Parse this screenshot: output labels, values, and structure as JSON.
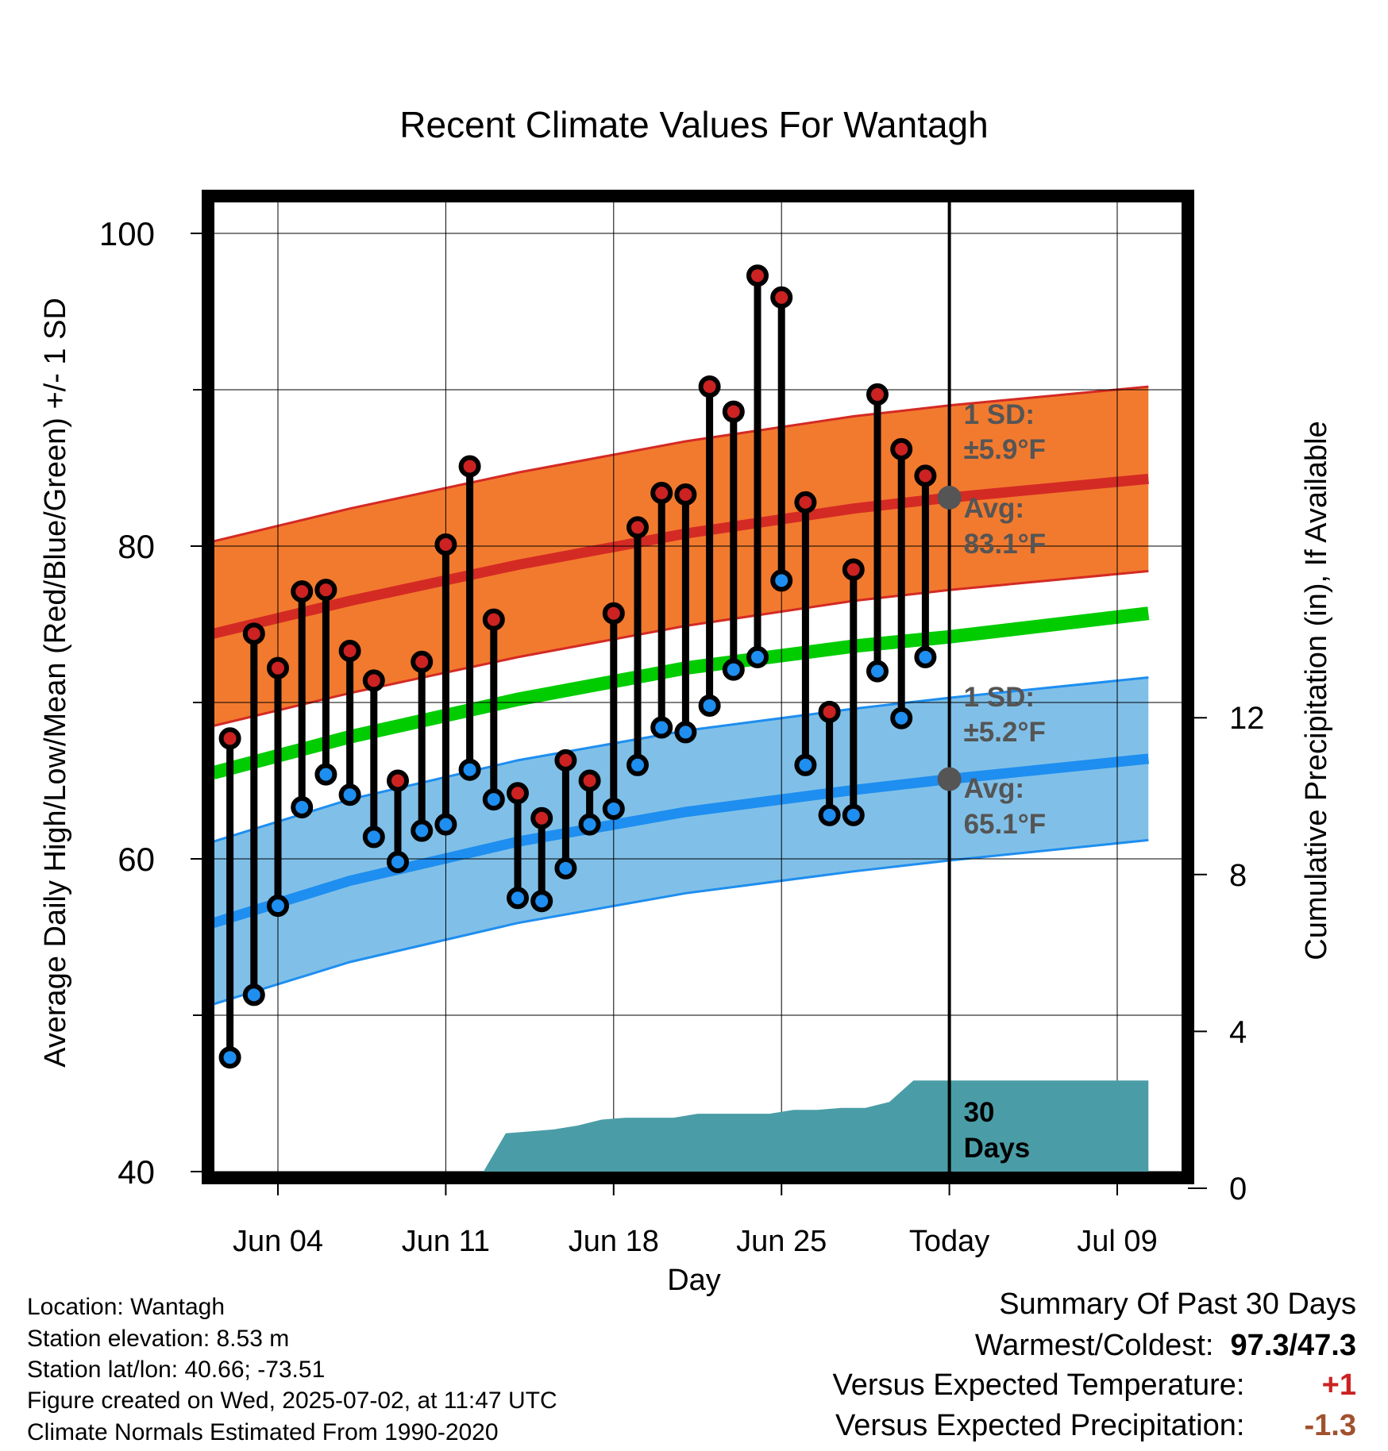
{
  "chart_data": {
    "type": "climate_range",
    "title": "Recent Climate Values For Wantagh",
    "xlabel": "Day",
    "ylabel": "Average Daily High/Low/Mean (Red/Blue/Green) +/- 1 SD",
    "y2label": "Cumulative Precipitation (in), If Available",
    "ylim": [
      39.5,
      102.5
    ],
    "y_ticks": [
      40,
      60,
      80,
      100
    ],
    "y2_ticks": [
      0,
      4,
      8,
      12
    ],
    "x_tick_labels": [
      "Jun 04",
      "Jun 11",
      "Jun 18",
      "Jun 25",
      "Today",
      "Jul 09"
    ],
    "x_tick_days": [
      4,
      11,
      18,
      25,
      32,
      39
    ],
    "today_day": 32,
    "observed": {
      "days": [
        2,
        3,
        4,
        5,
        6,
        7,
        8,
        9,
        10,
        11,
        12,
        13,
        14,
        15,
        16,
        17,
        18,
        19,
        20,
        21,
        22,
        23,
        24,
        25,
        26,
        27,
        28,
        29,
        30,
        31
      ],
      "high": [
        67.7,
        74.4,
        72.2,
        77.1,
        77.2,
        73.3,
        71.4,
        65.0,
        72.6,
        80.1,
        85.1,
        75.3,
        64.2,
        62.6,
        66.3,
        65.0,
        75.7,
        81.2,
        83.4,
        83.3,
        90.2,
        88.6,
        97.3,
        95.9,
        82.8,
        69.4,
        78.5,
        89.7,
        86.2,
        84.5
      ],
      "low": [
        47.3,
        51.3,
        57.0,
        63.3,
        65.4,
        64.1,
        61.4,
        59.8,
        61.8,
        62.2,
        65.7,
        63.8,
        57.5,
        57.3,
        59.4,
        62.2,
        63.2,
        66.0,
        68.4,
        68.1,
        69.8,
        72.1,
        72.9,
        77.8,
        66.0,
        62.8,
        62.8,
        72.0,
        69.0,
        72.9
      ]
    },
    "normals": {
      "days": [
        1.3,
        7,
        14,
        21,
        28,
        32,
        40.3
      ],
      "high_mean": [
        74.4,
        76.5,
        78.8,
        80.8,
        82.4,
        83.1,
        84.3
      ],
      "high_sd": 5.9,
      "low_mean": [
        55.9,
        58.6,
        61.1,
        63.0,
        64.4,
        65.1,
        66.4
      ],
      "low_sd": 5.2,
      "mean": [
        65.5,
        67.8,
        70.2,
        72.2,
        73.6,
        74.2,
        75.7
      ]
    },
    "precipitation_cumulative": {
      "days": [
        1.3,
        6.5,
        7.5,
        8.5,
        9.5,
        10.5,
        11.5,
        12.5,
        13.5,
        14.5,
        15.5,
        16.5,
        17.5,
        18.5,
        19.5,
        20.5,
        21.5,
        22.5,
        23.5,
        24.5,
        25.5,
        26.5,
        27.5,
        28.5,
        29.5,
        30.5,
        31.5,
        40.3
      ],
      "values": [
        0,
        0,
        0.15,
        0.15,
        0.25,
        0.35,
        0.35,
        0.35,
        1.4,
        1.45,
        1.5,
        1.6,
        1.75,
        1.8,
        1.8,
        1.8,
        1.9,
        1.9,
        1.9,
        1.9,
        2.0,
        2.0,
        2.05,
        2.05,
        2.2,
        2.75,
        2.75,
        2.75
      ]
    },
    "annotations": {
      "high_sd_label": "1 SD:",
      "high_sd_value": "±5.9°F",
      "high_avg_label": "Avg:",
      "high_avg_value": "83.1°F",
      "low_sd_label": "1 SD:",
      "low_sd_value": "±5.2°F",
      "low_avg_label": "Avg:",
      "low_avg_value": "65.1°F",
      "days_num": "30",
      "days_word": "Days"
    },
    "colors": {
      "high_band": "#f27a2e",
      "high_line": "#d42a24",
      "low_band": "#80c0e8",
      "low_line": "#1e8ef0",
      "mean_line": "#00cc00",
      "precip": "#4a9da6",
      "high_point": "#cc2222",
      "low_point": "#1e8ef0",
      "annotation": "#555555"
    }
  },
  "info": {
    "location": "Location: Wantagh",
    "elevation": "Station elevation: 8.53 m",
    "latlon": "Station lat/lon: 40.66; -73.51",
    "created": "Figure created on Wed, 2025-07-02, at 11:47 UTC",
    "normals": "Climate Normals Estimated From 1990-2020"
  },
  "summary": {
    "title": "Summary Of Past 30 Days",
    "warmest_label": "Warmest/Coldest:",
    "warmest_value": "97.3/47.3",
    "temp_label": "Versus Expected Temperature:",
    "temp_value": "+1",
    "temp_color": "#cc2222",
    "precip_label": "Versus Expected Precipitation:",
    "precip_value": "-1.3",
    "precip_color": "#a0522d"
  }
}
